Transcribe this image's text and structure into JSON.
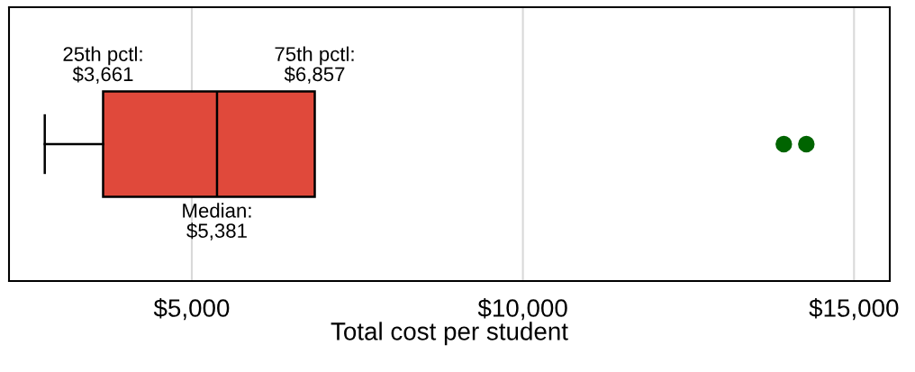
{
  "chart_data": {
    "type": "box",
    "orientation": "horizontal",
    "xlabel": "Total cost per student",
    "categories": [
      null
    ],
    "series": [
      {
        "color": "#e0493b",
        "boxes": [
          {
            "low": 2780,
            "q1": 3661,
            "median": 5381,
            "q3": 6857
          }
        ]
      },
      {
        "type": "scatter",
        "color": "#006400",
        "x": [
          null,
          null
        ],
        "values": [
          13940,
          14280
        ]
      }
    ],
    "xlim": [
      2240,
      15540
    ],
    "xticks": [
      {
        "value": 5000,
        "label": "$5,000"
      },
      {
        "value": 10000,
        "label": "$10,000"
      },
      {
        "value": 15000,
        "label": "$15,000"
      }
    ],
    "grid": "x",
    "annotations": [
      "25th pctl:\n$3,661",
      "75th pctl:\n$6,857",
      "Median:\n$5,381"
    ]
  }
}
